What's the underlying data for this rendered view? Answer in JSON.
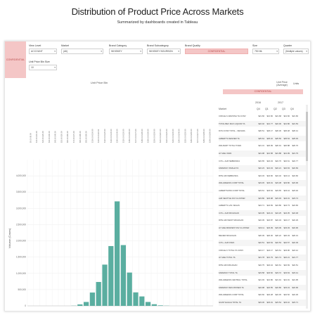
{
  "title": "Distribution of Product Price Across Markets",
  "subtitle": "Summarized by dashboards created in Tableau",
  "conf_label": "CONFIDENTIAL",
  "filters": [
    {
      "label": "View Level",
      "value": "ACCOUNT",
      "pink": false
    },
    {
      "label": "Market",
      "value": "(All)",
      "pink": false
    },
    {
      "label": "Brand Category",
      "value": "WHISKEY",
      "pink": false
    },
    {
      "label": "Brand Subcategory",
      "value": "WHISKEY BOURBON",
      "pink": false
    },
    {
      "label": "Brand Quality",
      "value": "CONFIDENTIAL",
      "pink": true
    },
    {
      "label": "Size",
      "value": "750 ML",
      "pink": false
    },
    {
      "label": "Quarter",
      "value": "(Multiple values)",
      "pink": false
    },
    {
      "label": "Unit Price Bin Size",
      "value": "10",
      "pink": false
    }
  ],
  "chart_data": {
    "type": "bar",
    "title": "Unit Price Bin",
    "ylabel": "Volume (Cases)",
    "ylim": [
      0,
      4500000
    ],
    "yticks": [
      "0",
      "500,000",
      "1,000,000",
      "1,500,000",
      "2,000,000",
      "2,500,000",
      "3,000,000",
      "3,500,000",
      "4,000,000"
    ],
    "categories": [
      "$0.00-$9.99",
      "$10.00-$19.99",
      "$20.00-$29.99",
      "$30.00-$39.99",
      "$40.00-$49.99",
      "$50.00-$59.99",
      "$60.00-$69.99",
      "$70.00-$79.99",
      "$80.00-$89.99",
      "$90.00-$99.99",
      "$100.00-$109.99",
      "$110.00-$119.99",
      "$120.00-$129.99",
      "$130.00-$139.99",
      "$140.00-$149.99",
      "$150.00-$159.99",
      "$160.00-$169.99",
      "$170.00-$179.99",
      "$180.00-$189.99",
      "$190.00-$199.99",
      "$200.00-$209.99",
      "$210.00-$219.99",
      "$220.00-$229.99",
      "$230.00-$239.99",
      "$240.00-$249.99",
      "$250.00-$259.99",
      "$260.00-$269.99",
      "$270.00-$279.99",
      "$280.00-$289.99",
      "$290.00-$299.99"
    ],
    "values": [
      0,
      0,
      0,
      0,
      0,
      0,
      0,
      5000,
      45000,
      120000,
      410000,
      735000,
      1269000,
      1840000,
      3215000,
      1870000,
      1025000,
      415000,
      290000,
      120000,
      50000,
      15000,
      5000,
      0,
      0,
      0,
      0,
      0,
      0,
      0
    ],
    "labels": [
      "",
      "",
      "",
      "",
      "",
      "",
      "",
      "",
      "",
      "",
      "",
      "",
      "",
      "",
      "",
      "",
      "",
      "",
      "",
      "",
      "",
      "",
      "",
      "",
      "",
      "",
      "",
      "",
      "",
      ""
    ],
    "bar_color": "#5aaea0"
  },
  "table": {
    "header_left": "Unit Price (Average)",
    "header_right": "Units",
    "market_label": "Market",
    "years": [
      "2016",
      "2017"
    ],
    "quarters": [
      "Q4",
      "Q1",
      "Q2",
      "Q3",
      "Q4"
    ],
    "rows": [
      {
        "name": "CIRCLE K ARIZONA TA CONV",
        "values": [
          "$21.66",
          "$21.66",
          "$21.68",
          "$21.66",
          "$21.66"
        ]
      },
      {
        "name": "TOTAL BEV MAX LIQUOR TA",
        "values": [
          "$22.02",
          "$21.77",
          "$22.06",
          "$21.86",
          "$21.53"
        ]
      },
      {
        "name": "DVS CONF TOTAL - NEVADA",
        "values": [
          "$26.51",
          "$26.17",
          "$26.30",
          "$26.48",
          "$26.41"
        ]
      },
      {
        "name": "ALBERT'S DENVER TA",
        "values": [
          "$25.64",
          "$25.16",
          "$25.56",
          "$25.54",
          "$25.93"
        ]
      },
      {
        "name": "WALMART TOTAL TOWA",
        "values": [
          "$21.31",
          "$20.99",
          "$20.91",
          "$20.88",
          "$20.76"
        ]
      },
      {
        "name": "HY-VEE IOWA",
        "values": [
          "$21.98",
          "$21.58",
          "$21.88",
          "$21.99",
          "$21.79"
        ]
      },
      {
        "name": "CVS + ALB NEBRASKA",
        "values": [
          "$22.65",
          "$22.43",
          "$22.76",
          "$22.61",
          "$22.77"
        ]
      },
      {
        "name": "FAREWAY OMAHA TA",
        "values": [
          "$22.23",
          "$21.43",
          "$22.21",
          "$22.63",
          "$22.69"
        ]
      },
      {
        "name": "RITE AID NEBRASKA",
        "values": [
          "$24.33",
          "$24.66",
          "$24.32",
          "$24.14",
          "$24.60"
        ]
      },
      {
        "name": "WALGREENS CORP TOTAL",
        "values": [
          "$23.45",
          "$23.01",
          "$23.38",
          "$23.80",
          "$23.96"
        ]
      },
      {
        "name": "ALBERTSONS CORP TOTAL",
        "values": [
          "$23.61",
          "$23.64",
          "$23.65",
          "$23.44",
          "$23.40"
        ]
      },
      {
        "name": "ALB SEATTLE DIV CLUSTER",
        "values": [
          "$23.86",
          "$23.98",
          "$23.93",
          "$24.01",
          "$23.74"
        ]
      },
      {
        "name": "ALBERT'S LAS VEGAS",
        "values": [
          "$24.71",
          "$24.69",
          "$24.86",
          "$24.73",
          "$24.66"
        ]
      },
      {
        "name": "CVS + ALB MICHIGAN",
        "values": [
          "$24.35",
          "$24.21",
          "$24.25",
          "$24.35",
          "$24.48"
        ]
      },
      {
        "name": "RITE AID WEST MICHIGAN",
        "values": [
          "$22.39",
          "$22.87",
          "$22.34",
          "$22.17",
          "$22.29"
        ]
      },
      {
        "name": "HY-VEE MIDWEST DIV CLUSTER",
        "values": [
          "$23.11",
          "$23.09",
          "$23.09",
          "$23.03",
          "$22.96"
        ]
      },
      {
        "name": "MEIJER MICHIGAN",
        "values": [
          "$20.39",
          "$20.30",
          "$20.22",
          "$20.33",
          "$20.31"
        ]
      },
      {
        "name": "CVS + ALB IOWA",
        "values": [
          "$22.51",
          "$22.54",
          "$22.53",
          "$22.57",
          "$22.39"
        ]
      },
      {
        "name": "CIRCLE K TOTAL TA CONV",
        "values": [
          "$24.17",
          "$24.17",
          "$23.61",
          "$23.96",
          "$24.12"
        ]
      },
      {
        "name": "HY-VEE TOTAL TA",
        "values": [
          "$21.78",
          "$21.79",
          "$21.74",
          "$22.21",
          "$21.77"
        ]
      },
      {
        "name": "RITE AID MICHIGAN",
        "values": [
          "$22.75",
          "$22.44",
          "$22.61",
          "$22.69",
          "$22.51"
        ]
      },
      {
        "name": "FAREWAY TOTAL TA",
        "values": [
          "$23.58",
          "$23.52",
          "$23.72",
          "$23.63",
          "$23.41"
        ]
      },
      {
        "name": "WALGREENS CENTRAL TOTAL",
        "values": [
          "$21.93",
          "$21.86",
          "$21.91",
          "$21.91",
          "$21.95"
        ]
      },
      {
        "name": "FAREWAY DES MOINES TA",
        "values": [
          "$22.98",
          "$22.55",
          "$22.80",
          "$23.19",
          "$22.96"
        ]
      },
      {
        "name": "WALGREENS CORP TOTAL",
        "values": [
          "$22.60",
          "$22.28",
          "$22.45",
          "$22.52",
          "$22.36"
        ]
      },
      {
        "name": "GIANT EAGLE TOTAL TA",
        "values": [
          "$23.36",
          "$23.01",
          "$23.54",
          "$23.10",
          "$23.71"
        ]
      }
    ]
  }
}
